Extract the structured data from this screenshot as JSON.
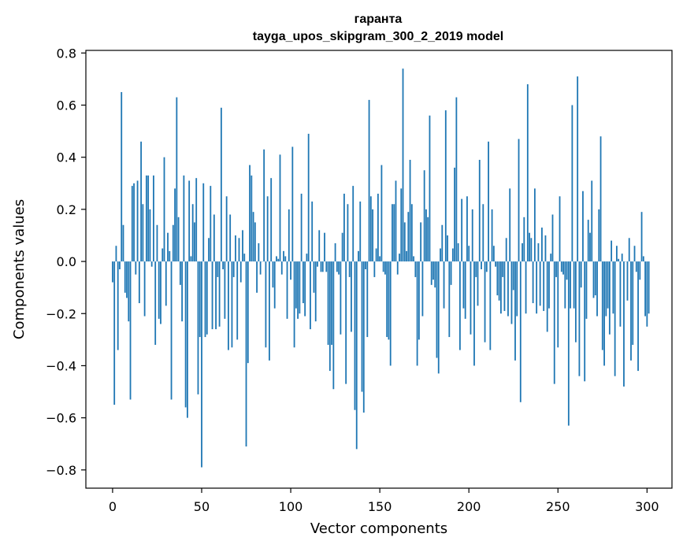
{
  "chart_data": {
    "type": "bar",
    "title": "гаранта",
    "subtitle": "tayga_upos_skipgram_300_2_2019 model",
    "xlabel": "Vector components",
    "ylabel": "Components values",
    "xlim": [
      -15,
      314
    ],
    "ylim": [
      -0.87,
      0.81
    ],
    "xticks": [
      0,
      50,
      100,
      150,
      200,
      250,
      300
    ],
    "yticks": [
      -0.8,
      -0.6,
      -0.4,
      -0.2,
      0.0,
      0.2,
      0.4,
      0.6,
      0.8
    ],
    "ytick_labels": [
      "−0.8",
      "−0.6",
      "−0.4",
      "−0.2",
      "0.0",
      "0.2",
      "0.4",
      "0.6",
      "0.8"
    ],
    "bar_color": "#1f77b4",
    "x_start": 0,
    "values": [
      -0.08,
      -0.55,
      0.06,
      -0.34,
      -0.03,
      0.65,
      0.14,
      -0.12,
      -0.14,
      -0.23,
      -0.53,
      0.29,
      0.3,
      -0.05,
      0.31,
      -0.16,
      0.46,
      0.22,
      -0.21,
      0.33,
      0.33,
      0.2,
      -0.02,
      0.33,
      -0.32,
      0.14,
      -0.22,
      -0.24,
      0.05,
      0.4,
      -0.17,
      0.11,
      0.04,
      -0.53,
      0.14,
      0.28,
      0.63,
      0.17,
      -0.09,
      -0.23,
      0.33,
      -0.56,
      -0.6,
      0.31,
      0.02,
      0.22,
      0.15,
      0.32,
      -0.51,
      -0.29,
      -0.79,
      0.3,
      -0.29,
      -0.28,
      0.09,
      0.29,
      -0.26,
      0.18,
      -0.26,
      -0.06,
      -0.25,
      0.59,
      -0.03,
      -0.22,
      0.25,
      -0.34,
      0.18,
      -0.33,
      -0.06,
      0.1,
      -0.3,
      0.09,
      -0.08,
      0.12,
      0.03,
      -0.71,
      -0.39,
      0.37,
      0.33,
      0.19,
      0.15,
      -0.12,
      0.07,
      -0.05,
      0.0,
      0.43,
      -0.33,
      0.25,
      -0.38,
      0.32,
      -0.1,
      -0.18,
      0.02,
      0.01,
      0.41,
      -0.05,
      0.04,
      0.02,
      -0.22,
      0.2,
      -0.07,
      0.44,
      -0.33,
      -0.18,
      -0.22,
      -0.2,
      0.26,
      -0.16,
      -0.21,
      0.03,
      0.49,
      -0.26,
      0.23,
      -0.12,
      -0.23,
      -0.02,
      0.12,
      -0.04,
      -0.04,
      0.11,
      -0.04,
      -0.32,
      -0.42,
      -0.32,
      -0.49,
      0.07,
      -0.04,
      -0.05,
      -0.28,
      0.11,
      0.26,
      -0.47,
      0.22,
      -0.06,
      -0.27,
      0.29,
      -0.57,
      -0.72,
      0.04,
      0.23,
      -0.5,
      -0.58,
      -0.03,
      -0.29,
      0.62,
      0.25,
      0.2,
      -0.06,
      0.05,
      0.26,
      0.02,
      0.37,
      -0.04,
      -0.05,
      -0.29,
      -0.3,
      -0.4,
      0.22,
      0.22,
      0.31,
      -0.05,
      0.03,
      0.28,
      0.74,
      0.15,
      0.04,
      0.19,
      0.39,
      0.22,
      0.02,
      -0.06,
      -0.4,
      -0.3,
      0.15,
      -0.21,
      0.35,
      0.2,
      0.17,
      0.56,
      -0.09,
      -0.07,
      -0.1,
      -0.37,
      -0.43,
      0.05,
      0.14,
      -0.18,
      0.58,
      0.1,
      -0.29,
      -0.09,
      0.05,
      0.36,
      0.63,
      0.07,
      -0.34,
      0.24,
      -0.18,
      -0.22,
      0.25,
      0.06,
      -0.28,
      0.2,
      -0.4,
      -0.06,
      -0.17,
      0.39,
      -0.03,
      0.22,
      -0.31,
      -0.04,
      0.46,
      -0.34,
      0.2,
      0.06,
      -0.02,
      -0.13,
      -0.15,
      -0.2,
      -0.06,
      -0.19,
      0.09,
      -0.21,
      0.28,
      -0.24,
      -0.11,
      -0.38,
      -0.21,
      0.47,
      -0.54,
      0.07,
      0.17,
      -0.2,
      0.68,
      0.11,
      0.09,
      -0.16,
      0.28,
      -0.2,
      0.07,
      -0.17,
      0.13,
      -0.19,
      0.1,
      -0.27,
      -0.18,
      0.03,
      0.18,
      -0.47,
      -0.06,
      -0.33,
      0.25,
      -0.04,
      -0.05,
      -0.18,
      -0.07,
      -0.63,
      -0.18,
      0.6,
      -0.18,
      -0.31,
      0.71,
      -0.44,
      -0.1,
      0.27,
      -0.46,
      -0.22,
      0.16,
      0.11,
      0.31,
      -0.14,
      -0.13,
      -0.21,
      0.2,
      0.48,
      -0.34,
      -0.4,
      -0.21,
      -0.18,
      -0.28,
      0.08,
      -0.2,
      -0.44,
      0.06,
      0.01,
      -0.25,
      0.03,
      -0.48,
      0.0,
      -0.15,
      0.09,
      -0.38,
      -0.32,
      0.06,
      -0.04,
      -0.42,
      -0.07,
      0.19,
      0.02,
      -0.21,
      -0.25,
      -0.2
    ]
  }
}
